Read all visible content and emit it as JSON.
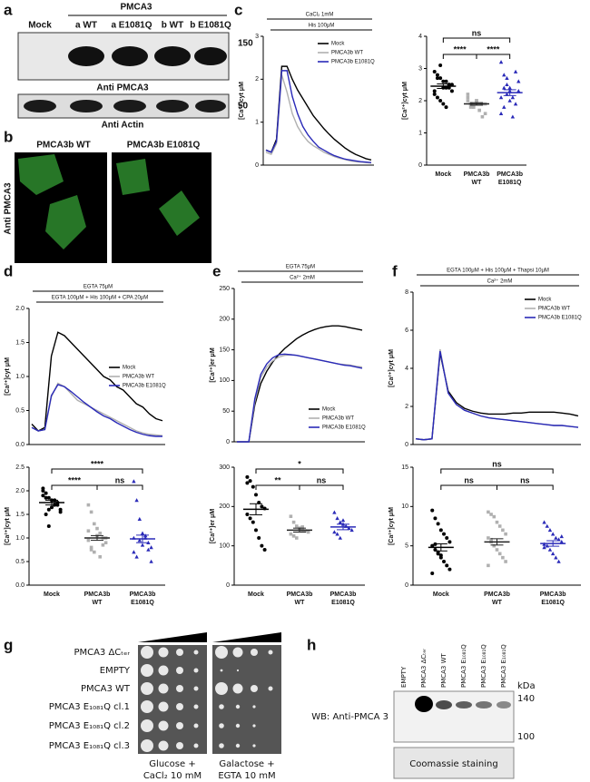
{
  "panel_labels": [
    "a",
    "b",
    "c",
    "d",
    "e",
    "f",
    "g",
    "h"
  ],
  "blot_a": {
    "header": "PMCA3",
    "lanes": [
      "Mock",
      "a WT",
      "a E1081Q",
      "b WT",
      "b E1081Q"
    ],
    "markers": [
      150,
      50
    ],
    "captions": [
      "Anti PMCA3",
      "Anti Actin"
    ]
  },
  "images_b": {
    "titles": [
      "PMCA3b WT",
      "PMCA3b E1081Q"
    ],
    "side_label": "Anti PMCA3"
  },
  "yeast_g": {
    "rows": [
      "PMCA3 ΔCₜₑᵣ",
      "EMPTY",
      "PMCA3 WT",
      "PMCA3 E₁₀₈₁Q cl.1",
      "PMCA3 E₁₀₈₁Q cl.2",
      "PMCA3 E₁₀₈₁Q cl.3"
    ],
    "conditions": [
      [
        "Glucose +",
        "CaCl₂ 10 mM"
      ],
      [
        "Galactose +",
        "EGTA 10 mM"
      ]
    ]
  },
  "blot_h": {
    "lanes": [
      "EMPTY",
      "PMCA3 ΔCₜₑᵣ",
      "PMCA3 WT",
      "PMCA3 E₁₀₈₁Q",
      "PMCA3 E₁₀₈₁Q",
      "PMCA3 E₁₀₈₁Q"
    ],
    "unit": "kDa",
    "markers": [
      140,
      100
    ],
    "captions": [
      "WB: Anti-PMCA 3",
      "Coomassie staining"
    ]
  },
  "chart_data": [
    {
      "type": "line",
      "treatments": [
        "CaCl₂ 1mM",
        "His 100μM"
      ],
      "ylabel": "[Ca²⁺]cyt μM",
      "ylim": [
        0,
        3
      ],
      "yticks": [
        0,
        1,
        2,
        3
      ],
      "legend": "upper right",
      "series": [
        {
          "name": "Mock",
          "color": "#000000",
          "values": [
            0.35,
            0.3,
            0.6,
            2.3,
            2.3,
            2.0,
            1.75,
            1.55,
            1.35,
            1.15,
            1.0,
            0.85,
            0.72,
            0.6,
            0.5,
            0.4,
            0.32,
            0.25,
            0.2,
            0.15,
            0.12
          ]
        },
        {
          "name": "PMCA3b WT",
          "color": "#b0b0b0",
          "values": [
            0.3,
            0.25,
            0.5,
            2.1,
            1.7,
            1.2,
            0.9,
            0.7,
            0.55,
            0.45,
            0.38,
            0.3,
            0.25,
            0.2,
            0.16,
            0.13,
            0.1,
            0.08,
            0.07,
            0.06,
            0.05
          ]
        },
        {
          "name": "PMCA3b E1081Q",
          "color": "#2a2ab8",
          "values": [
            0.35,
            0.3,
            0.55,
            2.2,
            2.2,
            1.6,
            1.2,
            0.9,
            0.7,
            0.55,
            0.42,
            0.35,
            0.28,
            0.22,
            0.18,
            0.14,
            0.12,
            0.1,
            0.08,
            0.07,
            0.06
          ]
        }
      ]
    },
    {
      "type": "dot",
      "ylabel": "[Ca²⁺]cyt μM",
      "ylim": [
        0,
        4
      ],
      "yticks": [
        0,
        1,
        2,
        3,
        4
      ],
      "categories": [
        [
          "Mock"
        ],
        [
          "PMCA3b",
          "WT"
        ],
        [
          "PMCA3b",
          "E1081Q"
        ]
      ],
      "significance": [
        "ns",
        "****",
        "****"
      ],
      "groups": [
        {
          "color": "#000000",
          "marker": "circle",
          "mean": 2.45,
          "sem": 0.07,
          "values": [
            2.9,
            2.7,
            3.1,
            2.6,
            2.4,
            2.5,
            2.3,
            2.2,
            2.8,
            2.0,
            1.9,
            2.6,
            2.4,
            2.5,
            2.3,
            2.1,
            2.7,
            2.4,
            1.8,
            2.5
          ]
        },
        {
          "color": "#b0b0b0",
          "marker": "square",
          "mean": 1.9,
          "sem": 0.04,
          "values": [
            2.1,
            1.9,
            1.8,
            2.0,
            1.7,
            1.9,
            1.6,
            2.2,
            1.9,
            1.8,
            2.0,
            1.7,
            1.5,
            1.9,
            2.0,
            1.8
          ]
        },
        {
          "color": "#2a2ab8",
          "marker": "triangle",
          "mean": 2.25,
          "sem": 0.09,
          "values": [
            3.2,
            2.8,
            2.5,
            2.3,
            2.1,
            1.9,
            2.6,
            1.6,
            2.4,
            2.2,
            2.0,
            1.5,
            2.9,
            2.3,
            2.1,
            1.8,
            2.7,
            2.4
          ]
        }
      ]
    },
    {
      "type": "line",
      "treatments": [
        "EGTA 75μM",
        "EGTA 100μM + His 100μM + CPA 20μM"
      ],
      "ylabel": "[Ca²⁺]cyt μM",
      "ylim": [
        0,
        2
      ],
      "yticks": [
        {
          "value": 0,
          "label": "0.0"
        },
        0.5,
        {
          "value": 1,
          "label": "1.0"
        },
        1.5,
        {
          "value": 2,
          "label": "2.0"
        }
      ],
      "legend": "center right",
      "series": [
        {
          "name": "Mock",
          "color": "#000000",
          "values": [
            0.3,
            0.2,
            0.25,
            1.3,
            1.65,
            1.6,
            1.5,
            1.4,
            1.3,
            1.2,
            1.1,
            1.0,
            0.95,
            0.85,
            0.8,
            0.7,
            0.6,
            0.55,
            0.45,
            0.38,
            0.35
          ]
        },
        {
          "name": "PMCA3b WT",
          "color": "#b0b0b0",
          "values": [
            0.25,
            0.2,
            0.22,
            0.7,
            0.9,
            0.85,
            0.75,
            0.65,
            0.6,
            0.55,
            0.5,
            0.45,
            0.4,
            0.35,
            0.3,
            0.25,
            0.2,
            0.17,
            0.15,
            0.14,
            0.13
          ]
        },
        {
          "name": "PMCA3b E1081Q",
          "color": "#2a2ab8",
          "values": [
            0.25,
            0.2,
            0.22,
            0.72,
            0.88,
            0.85,
            0.78,
            0.7,
            0.62,
            0.55,
            0.48,
            0.42,
            0.38,
            0.32,
            0.27,
            0.22,
            0.18,
            0.15,
            0.13,
            0.12,
            0.12
          ]
        }
      ]
    },
    {
      "type": "dot",
      "ylabel": "[Ca²⁺]cyt μM",
      "ylim": [
        0,
        2.5
      ],
      "yticks": [
        {
          "value": 0,
          "label": "0.0"
        },
        0.5,
        {
          "value": 1,
          "label": "1.0"
        },
        1.5,
        {
          "value": 2,
          "label": "2.0"
        },
        2.5
      ],
      "categories": [
        [
          "Mock"
        ],
        [
          "PMCA3b",
          "WT"
        ],
        [
          "PMCA3b",
          "E1081Q"
        ]
      ],
      "significance": [
        "****",
        "****",
        "ns"
      ],
      "groups": [
        {
          "color": "#000000",
          "marker": "circle",
          "mean": 1.75,
          "sem": 0.05,
          "values": [
            2.05,
            1.95,
            1.85,
            1.8,
            1.7,
            1.75,
            1.6,
            1.9,
            1.5,
            1.25,
            1.65,
            1.8,
            1.7,
            1.55,
            2.0,
            1.85,
            1.6
          ]
        },
        {
          "color": "#b0b0b0",
          "marker": "square",
          "mean": 1.0,
          "sem": 0.05,
          "values": [
            1.7,
            1.55,
            1.3,
            1.2,
            1.1,
            1.0,
            0.9,
            0.95,
            0.8,
            0.7,
            1.05,
            0.6,
            0.85,
            1.0,
            1.15,
            0.75
          ]
        },
        {
          "color": "#2a2ab8",
          "marker": "triangle",
          "mean": 0.98,
          "sem": 0.08,
          "values": [
            2.2,
            1.8,
            1.4,
            1.1,
            1.0,
            0.9,
            0.8,
            0.7,
            0.6,
            0.95,
            0.85,
            1.05,
            0.75,
            0.5,
            1.0
          ]
        }
      ]
    },
    {
      "type": "line",
      "treatments": [
        "EGTA 75μM",
        "Ca²⁺ 2mM"
      ],
      "ylabel": "[Ca²⁺]er μM",
      "ylim": [
        0,
        250
      ],
      "yticks": [
        0,
        50,
        100,
        150,
        200,
        250
      ],
      "legend": "lower right",
      "series": [
        {
          "name": "Mock",
          "color": "#000000",
          "values": [
            0,
            0,
            0,
            60,
            95,
            115,
            130,
            142,
            152,
            160,
            168,
            174,
            179,
            183,
            186,
            188,
            189,
            189,
            188,
            186,
            184,
            182
          ]
        },
        {
          "name": "PMCA3b WT",
          "color": "#b0b0b0",
          "values": [
            0,
            0,
            0,
            65,
            105,
            122,
            132,
            138,
            141,
            142,
            141,
            139,
            137,
            135,
            133,
            131,
            129,
            127,
            126,
            125,
            123,
            122
          ]
        },
        {
          "name": "PMCA3b E1081Q",
          "color": "#2a2ab8",
          "values": [
            0,
            0,
            0,
            70,
            110,
            127,
            137,
            142,
            143,
            142,
            141,
            139,
            137,
            135,
            133,
            131,
            129,
            127,
            125,
            124,
            122,
            120
          ]
        }
      ]
    },
    {
      "type": "dot",
      "ylabel": "[Ca²⁺]er μM",
      "ylim": [
        0,
        300
      ],
      "yticks": [
        0,
        100,
        200,
        300
      ],
      "categories": [
        [
          "Mock"
        ],
        [
          "PMCA3b",
          "WT"
        ],
        [
          "PMCA3b",
          "E1081Q"
        ]
      ],
      "significance": [
        "*",
        "**",
        "ns"
      ],
      "groups": [
        {
          "color": "#000000",
          "marker": "circle",
          "mean": 193,
          "sem": 14,
          "values": [
            275,
            265,
            250,
            230,
            210,
            200,
            195,
            180,
            170,
            160,
            140,
            120,
            100,
            90,
            260
          ]
        },
        {
          "color": "#b0b0b0",
          "marker": "square",
          "mean": 140,
          "sem": 5,
          "values": [
            175,
            160,
            150,
            145,
            140,
            138,
            135,
            130,
            125,
            120,
            142,
            148
          ]
        },
        {
          "color": "#2a2ab8",
          "marker": "triangle",
          "mean": 148,
          "sem": 7,
          "values": [
            185,
            170,
            160,
            155,
            150,
            145,
            140,
            135,
            130,
            120,
            165,
            150
          ]
        }
      ]
    },
    {
      "type": "line",
      "treatments": [
        "EGTA 100μM + His 100μM + Thapsi 10μM",
        "Ca²⁺ 2mM"
      ],
      "ylabel": "[Ca²⁺]cyt μM",
      "ylim": [
        0,
        8
      ],
      "yticks": [
        0,
        2,
        4,
        6,
        8
      ],
      "legend": "upper right",
      "series": [
        {
          "name": "Mock",
          "color": "#000000",
          "values": [
            0.3,
            0.25,
            0.3,
            4.8,
            2.8,
            2.2,
            1.9,
            1.75,
            1.65,
            1.6,
            1.6,
            1.6,
            1.65,
            1.65,
            1.7,
            1.7,
            1.7,
            1.7,
            1.65,
            1.6,
            1.5
          ]
        },
        {
          "name": "PMCA3b WT",
          "color": "#b0b0b0",
          "values": [
            0.3,
            0.25,
            0.3,
            5.0,
            2.7,
            2.1,
            1.8,
            1.65,
            1.5,
            1.4,
            1.35,
            1.3,
            1.25,
            1.2,
            1.15,
            1.1,
            1.05,
            1.0,
            1.0,
            0.95,
            0.9
          ]
        },
        {
          "name": "PMCA3b E1081Q",
          "color": "#2a2ab8",
          "values": [
            0.3,
            0.25,
            0.3,
            4.9,
            2.7,
            2.1,
            1.8,
            1.65,
            1.5,
            1.4,
            1.35,
            1.3,
            1.25,
            1.2,
            1.15,
            1.1,
            1.05,
            1.0,
            1.0,
            0.95,
            0.9
          ]
        }
      ]
    },
    {
      "type": "dot",
      "ylabel": "[Ca²⁺]cyt μM",
      "ylim": [
        0,
        15
      ],
      "yticks": [
        0,
        5,
        10,
        15
      ],
      "categories": [
        [
          "Mock"
        ],
        [
          "PMCA3b",
          "WT"
        ],
        [
          "PMCA3b",
          "E1081Q"
        ]
      ],
      "significance": [
        "ns",
        "ns",
        "ns"
      ],
      "groups": [
        {
          "color": "#000000",
          "marker": "circle",
          "mean": 4.8,
          "sem": 0.45,
          "values": [
            9.5,
            8.5,
            7.8,
            7,
            6.5,
            6,
            5.5,
            5,
            4.5,
            4,
            3.5,
            3,
            2.5,
            2,
            1.5,
            5.2,
            4.2,
            3.8
          ]
        },
        {
          "color": "#b0b0b0",
          "marker": "square",
          "mean": 5.5,
          "sem": 0.4,
          "values": [
            9.3,
            9,
            8.7,
            8,
            7.5,
            7,
            6.5,
            6,
            5.5,
            5,
            4.5,
            4,
            3.5,
            3,
            2.5,
            5.8
          ]
        },
        {
          "color": "#2a2ab8",
          "marker": "triangle",
          "mean": 5.3,
          "sem": 0.35,
          "values": [
            8,
            7.5,
            7,
            6.5,
            6,
            5.8,
            5.5,
            5.2,
            5,
            4.5,
            4,
            3.5,
            3,
            6.2,
            4.8
          ]
        }
      ]
    }
  ]
}
